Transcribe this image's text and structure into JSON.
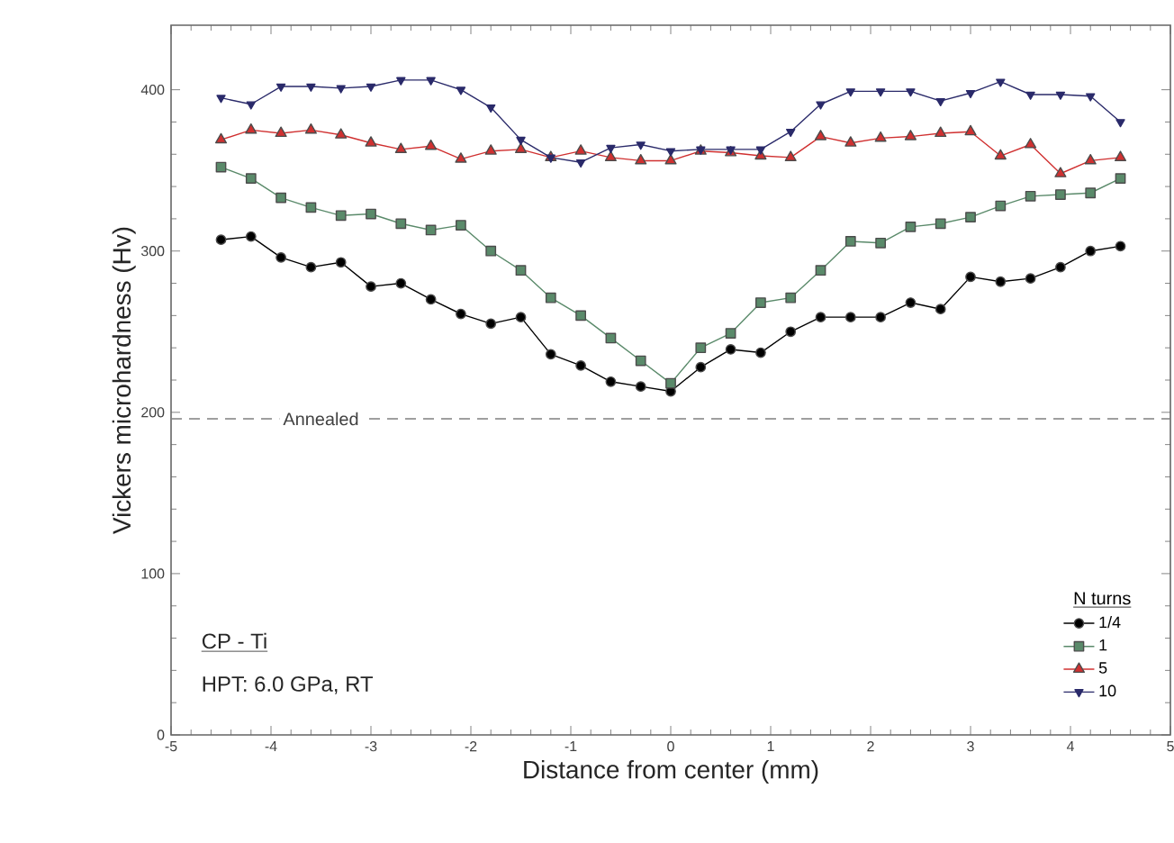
{
  "chart_data": {
    "type": "line",
    "xlabel": "Distance from center (mm)",
    "ylabel": "Vickers microhardness (Hv)",
    "legend_title": "N turns",
    "x": [
      -4.5,
      -4.2,
      -3.9,
      -3.6,
      -3.3,
      -3.0,
      -2.7,
      -2.4,
      -2.1,
      -1.8,
      -1.5,
      -1.2,
      -0.9,
      -0.6,
      -0.3,
      0,
      0.3,
      0.6,
      0.9,
      1.2,
      1.5,
      1.8,
      2.1,
      2.4,
      2.7,
      3.0,
      3.3,
      3.6,
      3.9,
      4.2,
      4.5
    ],
    "series": [
      {
        "name": "1/4",
        "color": "#000000",
        "marker": "circle",
        "values": [
          307,
          309,
          296,
          290,
          293,
          278,
          280,
          270,
          261,
          255,
          259,
          236,
          229,
          219,
          216,
          213,
          228,
          239,
          237,
          250,
          259,
          259,
          259,
          268,
          264,
          284,
          281,
          283,
          290,
          300,
          303
        ]
      },
      {
        "name": "1",
        "color": "#5a8a6a",
        "marker": "square",
        "values": [
          352,
          345,
          333,
          327,
          322,
          323,
          317,
          313,
          316,
          300,
          288,
          271,
          260,
          246,
          232,
          218,
          240,
          249,
          268,
          271,
          288,
          306,
          305,
          315,
          317,
          321,
          328,
          334,
          335,
          336,
          345
        ]
      },
      {
        "name": "5",
        "color": "#d03030",
        "marker": "triangle",
        "values": [
          369,
          375,
          373,
          375,
          372,
          367,
          363,
          365,
          357,
          362,
          363,
          358,
          362,
          358,
          356,
          356,
          362,
          361,
          359,
          358,
          371,
          367,
          370,
          371,
          373,
          374,
          359,
          366,
          348,
          356,
          358
        ]
      },
      {
        "name": "10",
        "color": "#2a2a6a",
        "marker": "triangle down",
        "values": [
          395,
          391,
          402,
          402,
          401,
          402,
          406,
          406,
          400,
          389,
          369,
          358,
          355,
          364,
          366,
          362,
          363,
          363,
          363,
          374,
          391,
          399,
          399,
          399,
          393,
          398,
          405,
          397,
          397,
          396,
          380
        ]
      }
    ],
    "xlim": [
      -5,
      5
    ],
    "xticks": [
      -5,
      -4,
      -3,
      -2,
      -1,
      0,
      1,
      2,
      3,
      4,
      5
    ],
    "ylim": [
      0,
      440
    ],
    "yticks": [
      0,
      100,
      200,
      300,
      400
    ],
    "ref_lines": [
      {
        "axis": "y",
        "value": 196,
        "label": "Annealed",
        "color": "#808080",
        "line_style": "dashed"
      }
    ],
    "annotations": [
      "CP - Ti",
      "HPT: 6.0 GPa, RT"
    ],
    "legend": "bottom right",
    "grid": false,
    "line_style": "solid"
  }
}
